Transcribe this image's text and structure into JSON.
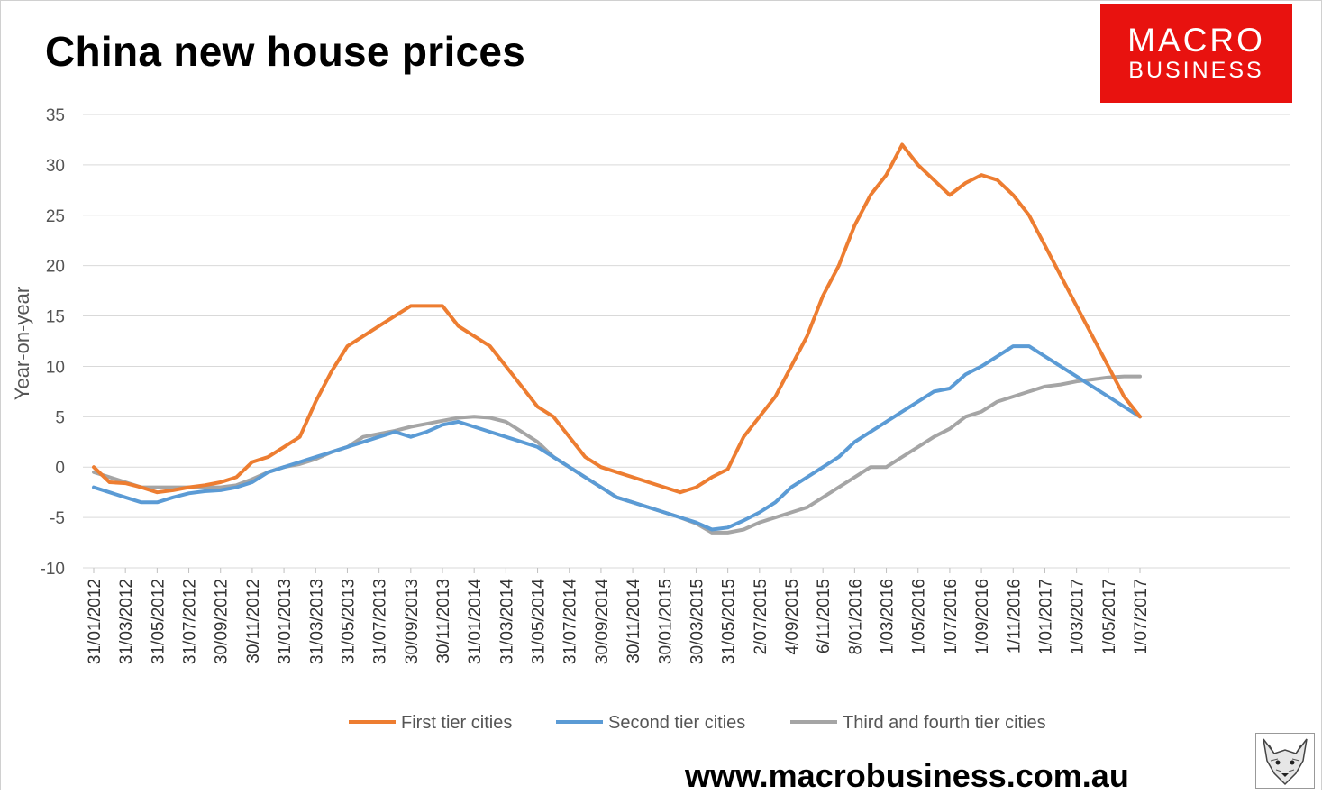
{
  "title": "China new house prices",
  "brand": {
    "line1": "MACRO",
    "line2": "BUSINESS",
    "color": "#e8120f"
  },
  "footer": {
    "url": "www.macrobusiness.com.au"
  },
  "fox_logo": {
    "icon": "fox-head-icon"
  },
  "chart_data": {
    "type": "line",
    "title": "China new house prices",
    "xlabel": "",
    "ylabel": "Year-on-year",
    "ylim": [
      -10,
      35
    ],
    "yticks": [
      -10,
      -5,
      0,
      5,
      10,
      15,
      20,
      25,
      30,
      35
    ],
    "grid": true,
    "legend": "bottom",
    "x_labels": [
      "31/01/2012",
      "31/03/2012",
      "31/05/2012",
      "31/07/2012",
      "30/09/2012",
      "30/11/2012",
      "31/01/2013",
      "31/03/2013",
      "31/05/2013",
      "31/07/2013",
      "30/09/2013",
      "30/11/2013",
      "31/01/2014",
      "31/03/2014",
      "31/05/2014",
      "31/07/2014",
      "30/09/2014",
      "30/11/2014",
      "30/01/2015",
      "30/03/2015",
      "31/05/2015",
      "2/07/2015",
      "4/09/2015",
      "6/11/2015",
      "8/01/2016",
      "1/03/2016",
      "1/05/2016",
      "1/07/2016",
      "1/09/2016",
      "1/11/2016",
      "1/01/2017",
      "1/03/2017",
      "1/05/2017",
      "1/07/2017"
    ],
    "series": [
      {
        "name": "First tier cities",
        "color": "#ed7d31",
        "values": [
          0,
          -1.5,
          -1.6,
          -2.0,
          -2.5,
          -2.3,
          -2.0,
          -1.8,
          -1.5,
          -1.0,
          0.5,
          1.0,
          2.0,
          3.0,
          6.5,
          9.5,
          12.0,
          13.0,
          14.0,
          15.0,
          16.0,
          16.0,
          16.0,
          14.0,
          13.0,
          12.0,
          10.0,
          8.0,
          6.0,
          5.0,
          3.0,
          1.0,
          0,
          -0.5,
          -1.0,
          -1.5,
          -2.0,
          -2.5,
          -2.0,
          -1.0,
          -0.2,
          3.0,
          5.0,
          7.0,
          10.0,
          13.0,
          17.0,
          20.0,
          24.0,
          27.0,
          29.0,
          32.0,
          30.0,
          28.5,
          27.0,
          28.2,
          29.0,
          28.5,
          27.0,
          25.0,
          22.0,
          19.0,
          16.0,
          13.0,
          10.0,
          7.0,
          5.0
        ]
      },
      {
        "name": "Second tier cities",
        "color": "#5b9bd5",
        "values": [
          -2.0,
          -2.5,
          -3.0,
          -3.5,
          -3.5,
          -3.0,
          -2.6,
          -2.4,
          -2.3,
          -2.0,
          -1.5,
          -0.5,
          0,
          0.5,
          1.0,
          1.5,
          2.0,
          2.5,
          3.0,
          3.5,
          3.0,
          3.5,
          4.2,
          4.5,
          4.0,
          3.5,
          3.0,
          2.5,
          2.0,
          1.0,
          0,
          -1.0,
          -2.0,
          -3.0,
          -3.5,
          -4.0,
          -4.5,
          -5.0,
          -5.5,
          -6.2,
          -6.0,
          -5.3,
          -4.5,
          -3.5,
          -2.0,
          -1.0,
          0,
          1.0,
          2.5,
          3.5,
          4.5,
          5.5,
          6.5,
          7.5,
          7.8,
          9.2,
          10.0,
          11.0,
          12.0,
          12.0,
          11.0,
          10.0,
          9.0,
          8.0,
          7.0,
          6.0,
          5.0
        ]
      },
      {
        "name": "Third and fourth tier cities",
        "color": "#a5a5a5",
        "values": [
          -0.5,
          -1.0,
          -1.5,
          -2.0,
          -2.0,
          -2.0,
          -2.0,
          -2.0,
          -2.0,
          -1.8,
          -1.2,
          -0.5,
          0,
          0.3,
          0.8,
          1.5,
          2.0,
          3.0,
          3.3,
          3.6,
          4.0,
          4.3,
          4.6,
          4.9,
          5.0,
          4.9,
          4.5,
          3.5,
          2.5,
          1.0,
          0,
          -1.0,
          -2.0,
          -3.0,
          -3.5,
          -4.0,
          -4.5,
          -5.0,
          -5.6,
          -6.5,
          -6.5,
          -6.2,
          -5.5,
          -5.0,
          -4.5,
          -4.0,
          -3.0,
          -2.0,
          -1.0,
          0,
          0,
          1.0,
          2.0,
          3.0,
          3.8,
          5.0,
          5.5,
          6.5,
          7.0,
          7.5,
          8.0,
          8.2,
          8.5,
          8.7,
          8.9,
          9.0,
          9.0
        ]
      }
    ]
  }
}
